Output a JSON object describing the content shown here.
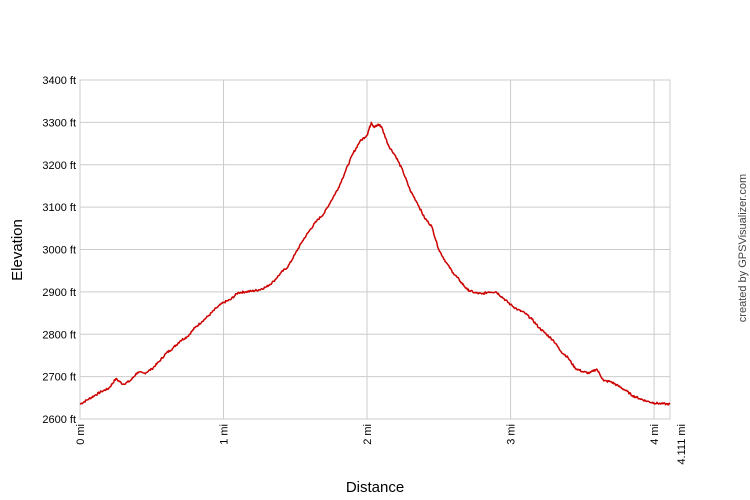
{
  "chart_data": {
    "type": "line",
    "title": "",
    "xlabel": "Distance",
    "ylabel": "Elevation",
    "xlim": [
      0,
      4.111
    ],
    "ylim": [
      2600,
      3400
    ],
    "grid": true,
    "y_ticks": [
      {
        "value": 2600,
        "label": "2600 ft"
      },
      {
        "value": 2700,
        "label": "2700 ft"
      },
      {
        "value": 2800,
        "label": "2800 ft"
      },
      {
        "value": 2900,
        "label": "2900 ft"
      },
      {
        "value": 3000,
        "label": "3000 ft"
      },
      {
        "value": 3100,
        "label": "3100 ft"
      },
      {
        "value": 3200,
        "label": "3200 ft"
      },
      {
        "value": 3300,
        "label": "3300 ft"
      },
      {
        "value": 3400,
        "label": "3400 ft"
      }
    ],
    "x_ticks": [
      {
        "value": 0,
        "label": "0 mi"
      },
      {
        "value": 1,
        "label": "1 mi"
      },
      {
        "value": 2,
        "label": "2 mi"
      },
      {
        "value": 3,
        "label": "3 mi"
      },
      {
        "value": 4,
        "label": "4 mi"
      },
      {
        "value": 4.111,
        "label": "4.111 mi"
      }
    ],
    "series": [
      {
        "color": "#cc0000",
        "x": [
          0,
          0.05,
          0.1,
          0.15,
          0.2,
          0.25,
          0.3,
          0.35,
          0.4,
          0.45,
          0.5,
          0.55,
          0.6,
          0.65,
          0.7,
          0.75,
          0.8,
          0.85,
          0.9,
          0.95,
          1.0,
          1.05,
          1.1,
          1.15,
          1.2,
          1.25,
          1.3,
          1.35,
          1.4,
          1.45,
          1.5,
          1.55,
          1.6,
          1.65,
          1.7,
          1.75,
          1.8,
          1.85,
          1.9,
          1.95,
          2.0,
          2.03,
          2.05,
          2.08,
          2.1,
          2.15,
          2.2,
          2.25,
          2.3,
          2.35,
          2.4,
          2.45,
          2.5,
          2.55,
          2.6,
          2.65,
          2.7,
          2.75,
          2.8,
          2.85,
          2.9,
          2.95,
          3.0,
          3.05,
          3.1,
          3.15,
          3.2,
          3.25,
          3.3,
          3.35,
          3.4,
          3.45,
          3.5,
          3.55,
          3.6,
          3.65,
          3.7,
          3.75,
          3.8,
          3.85,
          3.9,
          3.95,
          4.0,
          4.05,
          4.111
        ],
        "y": [
          2635,
          2645,
          2655,
          2665,
          2672,
          2695,
          2682,
          2690,
          2710,
          2708,
          2718,
          2735,
          2755,
          2768,
          2785,
          2795,
          2815,
          2830,
          2845,
          2862,
          2875,
          2882,
          2898,
          2900,
          2902,
          2905,
          2912,
          2925,
          2945,
          2960,
          2990,
          3020,
          3045,
          3068,
          3085,
          3115,
          3145,
          3185,
          3225,
          3255,
          3270,
          3300,
          3288,
          3295,
          3290,
          3245,
          3220,
          3185,
          3140,
          3110,
          3075,
          3055,
          3000,
          2970,
          2945,
          2925,
          2905,
          2898,
          2895,
          2900,
          2900,
          2885,
          2870,
          2858,
          2850,
          2835,
          2815,
          2800,
          2785,
          2760,
          2745,
          2720,
          2712,
          2708,
          2718,
          2690,
          2688,
          2678,
          2668,
          2655,
          2648,
          2642,
          2638,
          2636,
          2635
        ]
      }
    ]
  },
  "credit": "created by GPSVisualizer.com"
}
